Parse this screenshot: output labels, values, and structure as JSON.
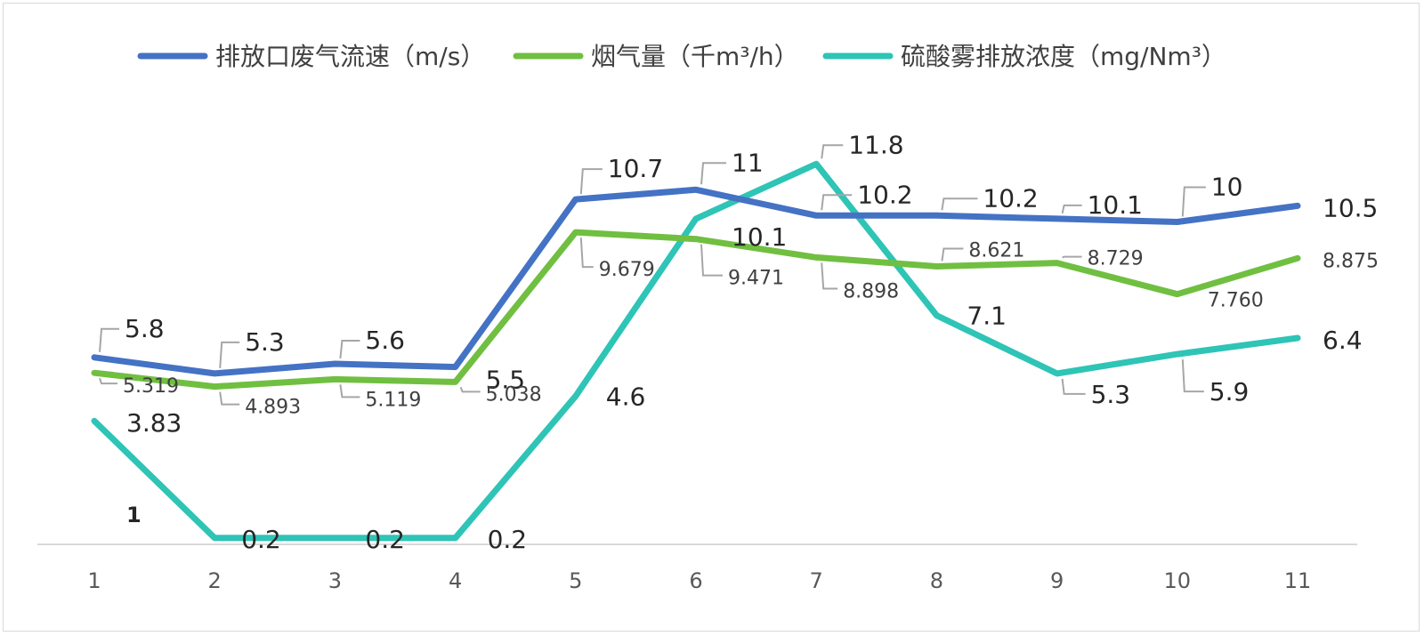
{
  "chart_data": {
    "type": "line",
    "categories": [
      "1",
      "2",
      "3",
      "4",
      "5",
      "6",
      "7",
      "8",
      "9",
      "10",
      "11"
    ],
    "series": [
      {
        "name": "排放口废气流速（m/s）",
        "color": "#4472C4",
        "values": [
          5.8,
          5.3,
          5.6,
          5.5,
          10.7,
          11,
          10.2,
          10.2,
          10.1,
          10,
          10.5
        ],
        "labels": [
          "5.8",
          "5.3",
          "5.6",
          "5.5",
          "10.7",
          "11",
          "10.2",
          "10.2",
          "10.1",
          "10",
          "10.5"
        ]
      },
      {
        "name": "烟气量（千m³/h）",
        "color": "#70BF41",
        "values": [
          5.319,
          4.893,
          5.119,
          5.038,
          9.679,
          9.471,
          8.898,
          8.621,
          8.729,
          7.76,
          8.875
        ],
        "labels": [
          "5.319",
          "4.893",
          "5.119",
          "5.038",
          "9.679",
          "9.471",
          "8.898",
          "8.621",
          "8.729",
          "7.760",
          "8.875"
        ]
      },
      {
        "name": "硫酸雾排放浓度（mg/Nm³）",
        "color": "#2EC4B6",
        "values": [
          3.83,
          0.2,
          0.2,
          0.2,
          4.6,
          10.1,
          11.8,
          7.1,
          5.3,
          5.9,
          6.4
        ],
        "labels": [
          "3.83",
          "0.2",
          "0.2",
          "0.2",
          "4.6",
          "10.1",
          "11.8",
          "7.1",
          "5.3",
          "5.9",
          "6.4"
        ]
      }
    ],
    "extra_labels": [
      "1"
    ],
    "legend_position": "top",
    "grid": false
  }
}
